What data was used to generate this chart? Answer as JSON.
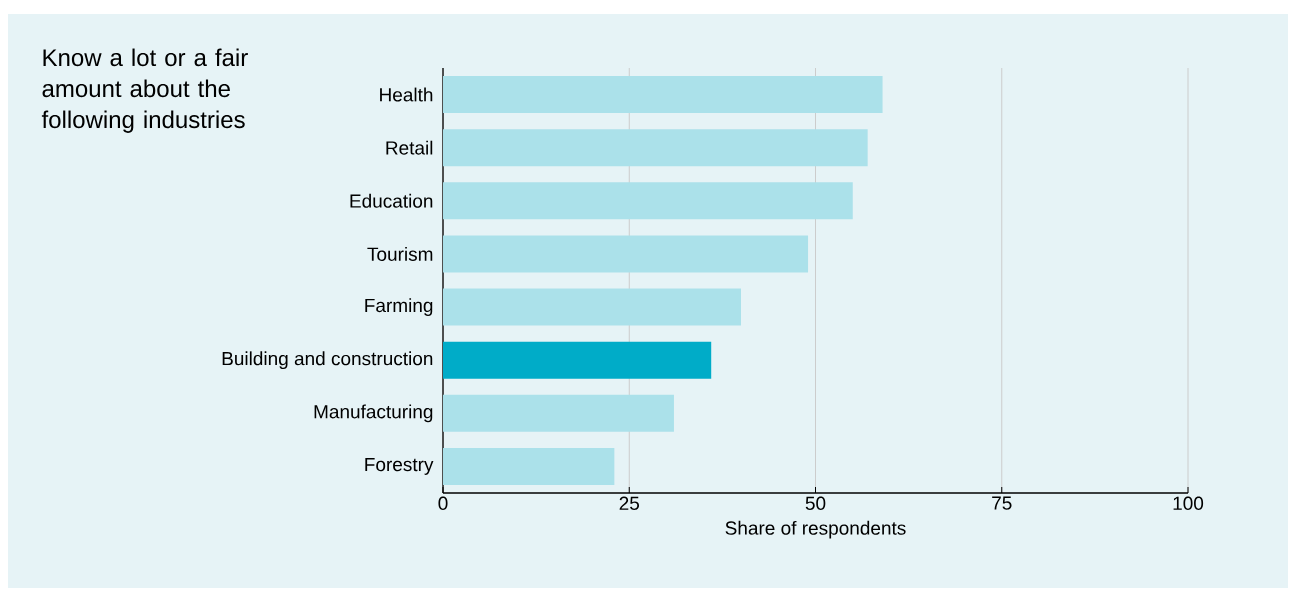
{
  "chart_data": {
    "type": "bar",
    "orientation": "horizontal",
    "title": "Know a lot or a fair amount about the following industries",
    "categories": [
      "Health",
      "Retail",
      "Education",
      "Tourism",
      "Farming",
      "Building and construction",
      "Manufacturing",
      "Forestry"
    ],
    "values": [
      59,
      57,
      55,
      49,
      40,
      36,
      31,
      23
    ],
    "colors": [
      "#abe1ea",
      "#abe1ea",
      "#abe1ea",
      "#abe1ea",
      "#abe1ea",
      "#00acc8",
      "#abe1ea",
      "#abe1ea"
    ],
    "xlabel": "Share of respondents",
    "xlim": [
      0,
      100
    ],
    "xticks": [
      0,
      25,
      50,
      75,
      100
    ],
    "grid": "x"
  }
}
